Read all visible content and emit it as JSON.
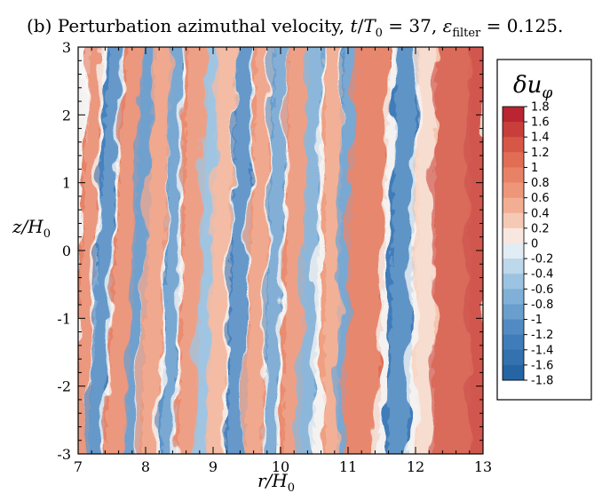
{
  "chart_data": {
    "type": "heatmap",
    "title": "(b) Perturbation azimuthal velocity, t/T₀ = 37, ε_filter = 0.125.",
    "title_parts": {
      "prefix": "(b) Perturbation azimuthal velocity, ",
      "t": "t",
      "T": "T",
      "sub0": "0",
      "eq37": " = 37, ",
      "eps": "ε",
      "filter": "filter",
      "val": " = 0.125."
    },
    "xlabel": "r/H₀",
    "xlabel_parts": {
      "main": "r/H",
      "sub": "0"
    },
    "ylabel": "z/H₀",
    "ylabel_parts": {
      "main": "z/H",
      "sub": "0"
    },
    "xlim": [
      7,
      13
    ],
    "ylim": [
      -3,
      3
    ],
    "x_ticks": [
      "7",
      "8",
      "9",
      "10",
      "11",
      "12",
      "13"
    ],
    "y_ticks": [
      "-3",
      "-2",
      "-1",
      "0",
      "1",
      "2",
      "3"
    ],
    "colorbar": {
      "title": "δuφ",
      "title_parts": {
        "delta": "δ",
        "u": "u",
        "phi": "φ"
      },
      "levels": [
        "1.8",
        "1.6",
        "1.4",
        "1.2",
        "1",
        "0.8",
        "0.6",
        "0.4",
        "0.2",
        "0",
        "-0.2",
        "-0.4",
        "-0.6",
        "-0.8",
        "-1",
        "-1.2",
        "-1.4",
        "-1.6",
        "-1.8"
      ],
      "range": [
        -1.8,
        1.8
      ]
    },
    "bands_description": "alternating positive/negative tilted vertical bands in r, with turbulent small-scale structure",
    "bands": [
      {
        "r_at_top": 7.1,
        "r_at_bottom": 7.25,
        "width": 0.12,
        "value": 0.0
      },
      {
        "r_at_top": 7.25,
        "r_at_bottom": 7.0,
        "width": 0.2,
        "value": 0.9
      },
      {
        "r_at_top": 7.55,
        "r_at_bottom": 7.2,
        "width": 0.22,
        "value": -1.2
      },
      {
        "r_at_top": 7.85,
        "r_at_bottom": 7.5,
        "width": 0.3,
        "value": 0.9
      },
      {
        "r_at_top": 8.05,
        "r_at_bottom": 7.75,
        "width": 0.2,
        "value": -1.1
      },
      {
        "r_at_top": 8.25,
        "r_at_bottom": 8.0,
        "width": 0.25,
        "value": 0.7
      },
      {
        "r_at_top": 8.45,
        "r_at_bottom": 8.3,
        "width": 0.2,
        "value": -1.0
      },
      {
        "r_at_top": 8.75,
        "r_at_bottom": 8.6,
        "width": 0.3,
        "value": 0.8
      },
      {
        "r_at_top": 9.0,
        "r_at_bottom": 8.8,
        "width": 0.2,
        "value": -0.6
      },
      {
        "r_at_top": 9.2,
        "r_at_bottom": 9.0,
        "width": 0.25,
        "value": 0.5
      },
      {
        "r_at_top": 9.45,
        "r_at_bottom": 9.3,
        "width": 0.25,
        "value": -1.2
      },
      {
        "r_at_top": 9.75,
        "r_at_bottom": 9.55,
        "width": 0.25,
        "value": 0.7
      },
      {
        "r_at_top": 10.0,
        "r_at_bottom": 9.8,
        "width": 0.2,
        "value": -0.9
      },
      {
        "r_at_top": 10.25,
        "r_at_bottom": 10.15,
        "width": 0.3,
        "value": 0.8
      },
      {
        "r_at_top": 10.5,
        "r_at_bottom": 10.35,
        "width": 0.2,
        "value": -0.8
      },
      {
        "r_at_top": 10.75,
        "r_at_bottom": 10.75,
        "width": 0.25,
        "value": 0.6
      },
      {
        "r_at_top": 11.0,
        "r_at_bottom": 10.9,
        "width": 0.2,
        "value": -1.0
      },
      {
        "r_at_top": 11.35,
        "r_at_bottom": 11.15,
        "width": 0.5,
        "value": 1.1
      },
      {
        "r_at_top": 11.85,
        "r_at_bottom": 11.7,
        "width": 0.3,
        "value": -1.3
      },
      {
        "r_at_top": 12.15,
        "r_at_bottom": 12.1,
        "width": 0.25,
        "value": 0.2
      },
      {
        "r_at_top": 12.55,
        "r_at_bottom": 12.5,
        "width": 0.55,
        "value": 1.4
      },
      {
        "r_at_top": 12.9,
        "r_at_bottom": 12.9,
        "width": 0.25,
        "value": 1.6
      }
    ]
  }
}
